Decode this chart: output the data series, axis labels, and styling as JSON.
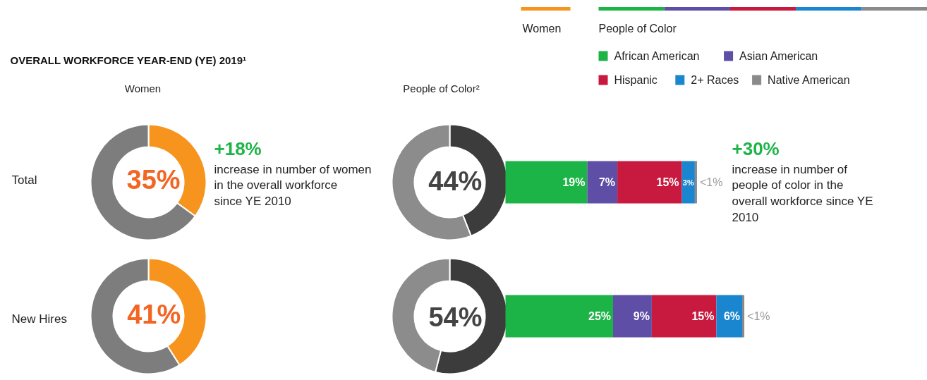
{
  "chart_data": [
    {
      "type": "donut",
      "title": "OVERALL WORKFORCE YEAR-END (YE) 2019¹",
      "subtitle": "Women",
      "ylabel": "Total",
      "categories": [
        null,
        null
      ],
      "values": [
        35,
        65
      ],
      "colors": [
        "#f7941d",
        "#7d7d7d"
      ],
      "value_labels": [
        "35%",
        null
      ],
      "annotations": [
        "+18%",
        "increase in number of women in the overall workforce since YE 2010"
      ]
    },
    {
      "type": "donut",
      "ylabel": "New Hires",
      "categories": [
        null,
        null
      ],
      "values": [
        41,
        59
      ],
      "colors": [
        "#f7941d",
        "#7d7d7d"
      ],
      "value_labels": [
        "41%",
        null
      ]
    },
    {
      "type": "donut",
      "subtitle": "People of Color²",
      "categories": [
        null,
        null
      ],
      "values": [
        44,
        56
      ],
      "colors": [
        "#3c3c3c",
        "#8c8c8c"
      ],
      "value_labels": [
        "44%",
        null
      ]
    },
    {
      "type": "donut",
      "categories": [
        null,
        null
      ],
      "values": [
        54,
        46
      ],
      "colors": [
        "#3c3c3c",
        "#8c8c8c"
      ],
      "value_labels": [
        "54%",
        null
      ]
    },
    {
      "type": "bar",
      "orientation": "horizontal",
      "stacked": true,
      "categories": [
        null,
        null
      ],
      "legend": "top right",
      "legend_title": "People of Color",
      "annotations": [
        "Women",
        "+30%",
        "increase in number of people of color in the overall workforce since YE 2010"
      ],
      "series": [
        {
          "name": "African American",
          "color": "#1db447",
          "values": [
            19,
            25
          ],
          "value_labels": [
            "19%",
            "25%"
          ]
        },
        {
          "name": "Asian American",
          "color": "#5e4ea6",
          "values": [
            7,
            9
          ],
          "value_labels": [
            "7%",
            "9%"
          ]
        },
        {
          "name": "Hispanic",
          "color": "#c8193f",
          "values": [
            15,
            15
          ],
          "value_labels": [
            "15%",
            "15%"
          ]
        },
        {
          "name": "2+ Races",
          "color": "#1a86d0",
          "values": [
            3,
            6
          ],
          "value_labels": [
            "3%",
            "6%"
          ]
        },
        {
          "name": "Native American",
          "color": "#8a8a8d",
          "values": [
            0.5,
            0.5
          ],
          "value_labels": [
            "<1%",
            "<1%"
          ]
        }
      ]
    }
  ]
}
